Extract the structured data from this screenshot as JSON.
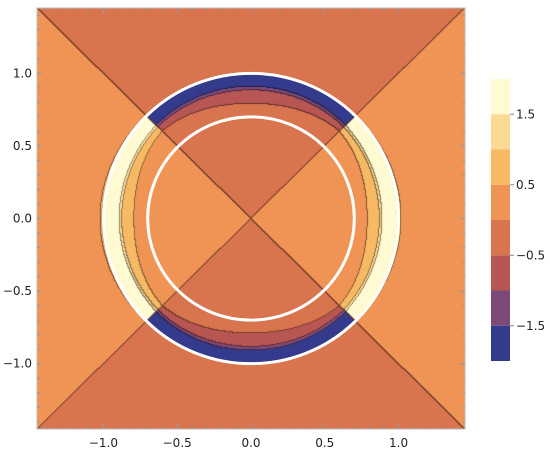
{
  "chart_data": {
    "type": "contour",
    "title": "",
    "xlabel": "",
    "ylabel": "",
    "xlim": [
      -1.45,
      1.45
    ],
    "ylim": [
      -1.45,
      1.45
    ],
    "x_ticks": [
      {
        "value": -1.0,
        "label": "−1.0"
      },
      {
        "value": -0.5,
        "label": "−0.5"
      },
      {
        "value": 0.0,
        "label": "0.0"
      },
      {
        "value": 0.5,
        "label": "0.5"
      },
      {
        "value": 1.0,
        "label": "1.0"
      }
    ],
    "y_ticks": [
      {
        "value": 1.0,
        "label": "1.0"
      },
      {
        "value": 0.5,
        "label": "0.5"
      },
      {
        "value": 0.0,
        "label": "0.0"
      },
      {
        "value": -0.5,
        "label": "−0.5"
      },
      {
        "value": -1.0,
        "label": "−1.0"
      }
    ],
    "contour_levels": [
      -2.0,
      -1.5,
      -1.0,
      -0.5,
      0.0,
      0.5,
      1.0,
      1.5,
      2.0
    ],
    "colorbar": {
      "range": [
        -2.0,
        2.0
      ],
      "colors": [
        "#343a8c",
        "#7d4a78",
        "#b75652",
        "#d8744e",
        "#f09456",
        "#f7b964",
        "#fcda95",
        "#fffad2"
      ],
      "tick_labels": [
        {
          "value": 1.5,
          "label": "1.5"
        },
        {
          "value": 0.5,
          "label": "0.5"
        },
        {
          "value": -0.5,
          "label": "−0.5"
        },
        {
          "value": -1.5,
          "label": "−1.5"
        }
      ]
    },
    "regions": [
      {
        "name": "left-right wedges",
        "level_band": [
          0.0,
          0.5
        ],
        "color": "#f09456"
      },
      {
        "name": "top-bottom wedges",
        "level_band": [
          -0.5,
          0.0
        ],
        "color": "#d8744e"
      },
      {
        "name": "side lobes",
        "level_bands": [
          [
            0.5,
            1.0
          ],
          [
            1.0,
            1.5
          ],
          [
            1.5,
            2.0
          ]
        ],
        "colors": [
          "#f7b964",
          "#fcda95",
          "#fffad2"
        ]
      },
      {
        "name": "top-bottom lobes",
        "level_bands": [
          [
            -1.0,
            -0.5
          ],
          [
            -1.5,
            -1.0
          ],
          [
            -2.0,
            -1.5
          ]
        ],
        "colors": [
          "#b75652",
          "#7d4a78",
          "#343a8c"
        ]
      }
    ],
    "overlay_circles": [
      {
        "center": [
          0.0,
          0.0
        ],
        "radius": 1.0,
        "color": "#ffffff"
      },
      {
        "center": [
          0.0,
          0.0
        ],
        "radius": 0.7,
        "color": "#ffffff"
      }
    ]
  }
}
